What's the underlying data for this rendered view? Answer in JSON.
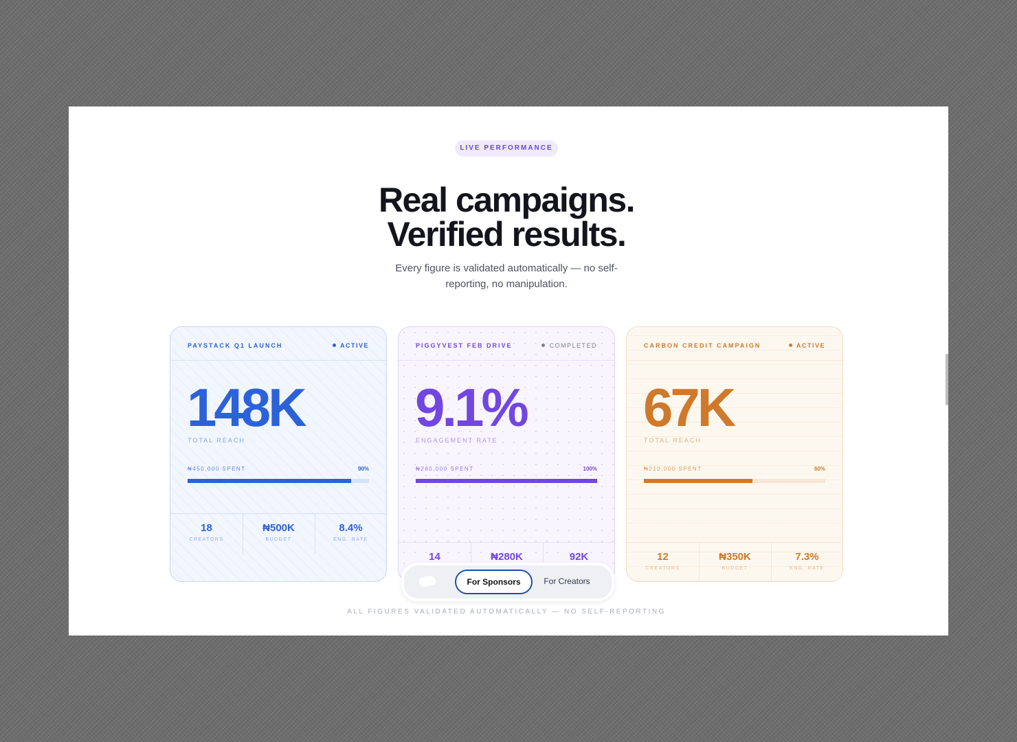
{
  "badge": "LIVE PERFORMANCE",
  "title": {
    "line1": "Real campaigns.",
    "line2": "Verified results."
  },
  "subtitle": "Every figure is validated automatically — no self-reporting, no manipulation.",
  "cards": [
    {
      "name": "PAYSTACK Q1 LAUNCH",
      "status": "ACTIVE",
      "metric": "148K",
      "metric_label": "TOTAL REACH",
      "spent": "₦450,000 SPENT",
      "percent": {
        "value": 90,
        "label": "90%"
      },
      "stats": [
        {
          "value": "18",
          "label": "CREATORS"
        },
        {
          "value": "₦500K",
          "label": "BUDGET"
        },
        {
          "value": "8.4%",
          "label": "ENG. RATE"
        }
      ]
    },
    {
      "name": "PIGGYVEST FEB DRIVE",
      "status": "COMPLETED",
      "metric": "9.1%",
      "metric_label": "ENGAGEMENT RATE",
      "spent": "₦280,000 SPENT",
      "percent": {
        "value": 100,
        "label": "100%"
      },
      "stats": [
        {
          "value": "14"
        },
        {
          "value": "₦280K"
        },
        {
          "value": "92K"
        }
      ]
    },
    {
      "name": "CARBON CREDIT CAMPAIGN",
      "status": "ACTIVE",
      "metric": "67K",
      "metric_label": "TOTAL REACH",
      "spent": "₦210,000 SPENT",
      "percent": {
        "value": 60,
        "label": "60%"
      },
      "stats": [
        {
          "value": "12",
          "label": "CREATORS"
        },
        {
          "value": "₦350K",
          "label": "BUDGET"
        },
        {
          "value": "7.3%",
          "label": "ENG. RATE"
        }
      ]
    }
  ],
  "toggle": {
    "options": [
      "For Sponsors",
      "For Creators"
    ]
  },
  "footer": "ALL FIGURES VALIDATED AUTOMATICALLY — NO SELF-REPORTING"
}
